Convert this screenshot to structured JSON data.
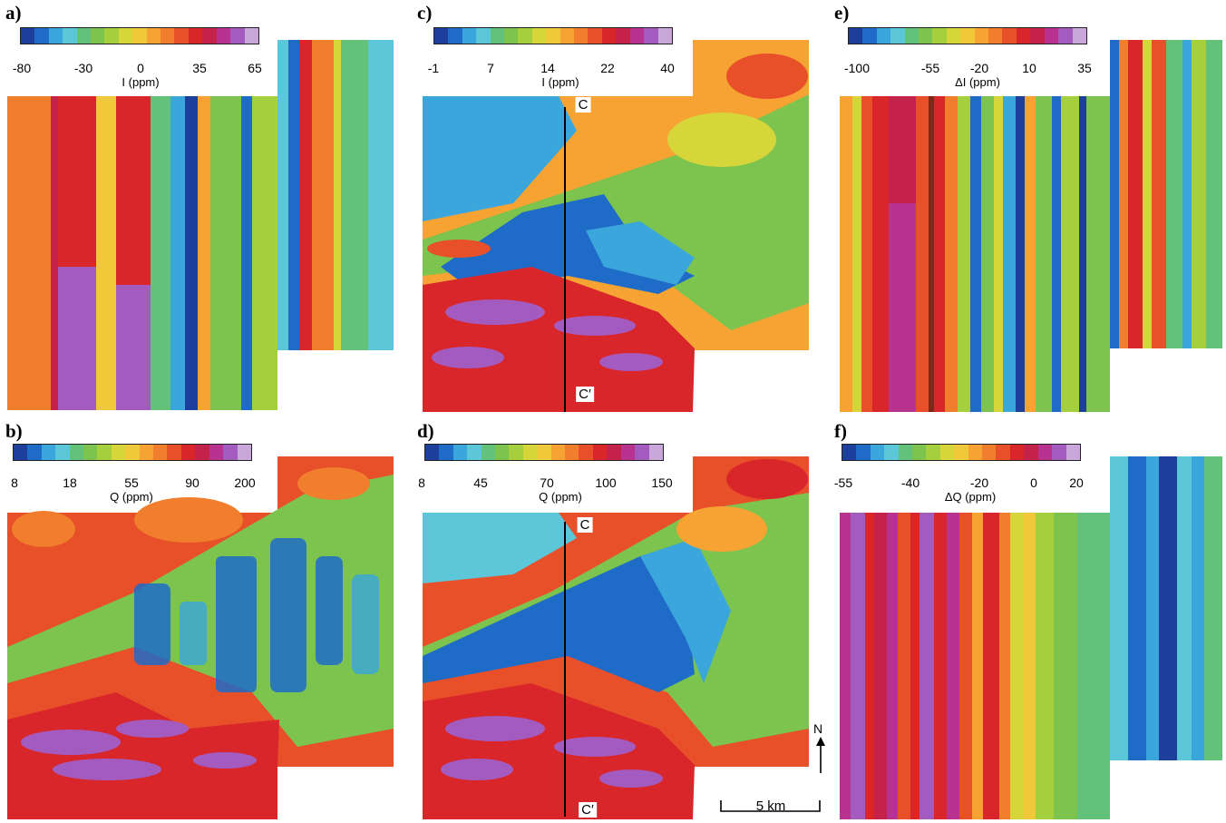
{
  "panels": [
    {
      "id": "a",
      "label": "a)",
      "ticks": [
        "-80",
        "-30",
        "0",
        "35",
        "65"
      ],
      "unit": "I (ppm)"
    },
    {
      "id": "b",
      "label": "b)",
      "ticks": [
        "8",
        "18",
        "55",
        "90",
        "200"
      ],
      "unit": "Q (ppm)"
    },
    {
      "id": "c",
      "label": "c)",
      "ticks": [
        "-1",
        "7",
        "14",
        "22",
        "40"
      ],
      "unit": "I (ppm)"
    },
    {
      "id": "d",
      "label": "d)",
      "ticks": [
        "8",
        "45",
        "70",
        "100",
        "150"
      ],
      "unit": "Q (ppm)"
    },
    {
      "id": "e",
      "label": "e)",
      "ticks": [
        "-100",
        "-55",
        "-20",
        "10",
        "35"
      ],
      "unit": "ΔI (ppm)"
    },
    {
      "id": "f",
      "label": "f)",
      "ticks": [
        "-55",
        "-40",
        "-20",
        "0",
        "20"
      ],
      "unit": "ΔQ (ppm)"
    }
  ],
  "section": {
    "top": "C",
    "bottom": "C′"
  },
  "north_label": "N",
  "scale_label": "5 km",
  "colors": {
    "palette": [
      "#1d3f9c",
      "#1f6cc8",
      "#3aa6dc",
      "#5cc7d8",
      "#63c27a",
      "#7cc44e",
      "#a6cf3d",
      "#d6d53a",
      "#f0c93a",
      "#f7a334",
      "#f07e2c",
      "#e8502a",
      "#d9262b",
      "#c4224a",
      "#b8338f",
      "#a45bbf",
      "#c9a7da"
    ]
  }
}
